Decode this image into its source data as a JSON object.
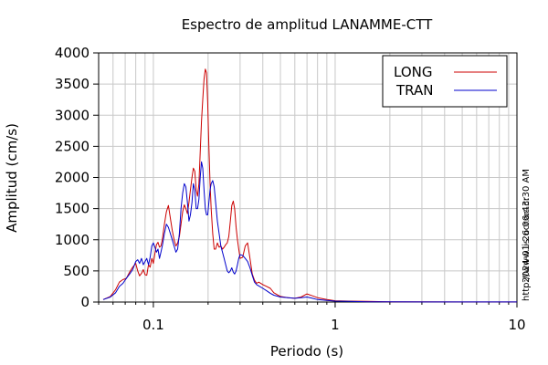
{
  "chart_data": {
    "type": "line",
    "title": "Espectro de amplitud LANAMME-CTT",
    "xlabel": "Periodo (s)",
    "ylabel": "Amplitud (cm/s)",
    "x_scale": "log",
    "xlim": [
      0.05,
      10
    ],
    "ylim": [
      0,
      4000
    ],
    "x_ticks": [
      0.1,
      1,
      10
    ],
    "x_tick_labels": [
      "0.1",
      "1",
      "10"
    ],
    "y_ticks": [
      0,
      500,
      1000,
      1500,
      2000,
      2500,
      3000,
      3500,
      4000
    ],
    "y_tick_labels": [
      "0",
      "500",
      "1000",
      "1500",
      "2000",
      "2500",
      "3000",
      "3500",
      "4000"
    ],
    "grid": true,
    "legend_position": "top-right",
    "side_annotation_top": "2024-01-26 06:43:30 AM",
    "side_annotation_bottom": "http://www.lis.ucr.ac.cr",
    "series": [
      {
        "name": "LONG",
        "color": "#cc0000",
        "x": [
          0.053,
          0.058,
          0.062,
          0.065,
          0.068,
          0.071,
          0.074,
          0.077,
          0.08,
          0.082,
          0.084,
          0.086,
          0.088,
          0.09,
          0.092,
          0.094,
          0.096,
          0.098,
          0.1,
          0.102,
          0.104,
          0.106,
          0.108,
          0.11,
          0.112,
          0.115,
          0.118,
          0.121,
          0.124,
          0.127,
          0.13,
          0.133,
          0.136,
          0.139,
          0.142,
          0.145,
          0.148,
          0.151,
          0.154,
          0.157,
          0.16,
          0.163,
          0.166,
          0.169,
          0.172,
          0.175,
          0.178,
          0.181,
          0.184,
          0.187,
          0.19,
          0.193,
          0.196,
          0.199,
          0.202,
          0.205,
          0.208,
          0.212,
          0.216,
          0.22,
          0.225,
          0.23,
          0.235,
          0.24,
          0.245,
          0.25,
          0.255,
          0.26,
          0.265,
          0.27,
          0.275,
          0.28,
          0.285,
          0.29,
          0.295,
          0.3,
          0.31,
          0.32,
          0.33,
          0.34,
          0.35,
          0.36,
          0.37,
          0.38,
          0.4,
          0.42,
          0.44,
          0.46,
          0.5,
          0.55,
          0.6,
          0.65,
          0.7,
          0.75,
          0.8,
          0.9,
          1.0,
          1.2,
          1.5,
          2.0,
          3.0,
          5.0,
          10.0
        ],
        "y": [
          40,
          90,
          200,
          320,
          360,
          380,
          480,
          560,
          620,
          500,
          420,
          460,
          520,
          440,
          430,
          600,
          560,
          700,
          620,
          780,
          920,
          960,
          880,
          900,
          1000,
          1250,
          1450,
          1550,
          1350,
          1150,
          1000,
          900,
          950,
          1050,
          1250,
          1450,
          1560,
          1500,
          1420,
          1600,
          1800,
          2000,
          2150,
          2100,
          1800,
          1700,
          1900,
          2400,
          2900,
          3250,
          3580,
          3740,
          3680,
          3200,
          2500,
          1900,
          1500,
          1100,
          850,
          850,
          950,
          880,
          900,
          850,
          880,
          920,
          950,
          1050,
          1300,
          1550,
          1620,
          1500,
          1200,
          1000,
          850,
          700,
          720,
          900,
          950,
          700,
          450,
          350,
          300,
          320,
          280,
          250,
          220,
          150,
          90,
          70,
          60,
          80,
          130,
          100,
          70,
          40,
          20,
          15,
          10,
          5,
          3,
          2,
          1
        ]
      },
      {
        "name": "TRAN",
        "color": "#0000cc",
        "x": [
          0.053,
          0.058,
          0.062,
          0.065,
          0.068,
          0.071,
          0.074,
          0.077,
          0.08,
          0.082,
          0.084,
          0.086,
          0.088,
          0.09,
          0.092,
          0.094,
          0.096,
          0.098,
          0.1,
          0.102,
          0.104,
          0.106,
          0.108,
          0.11,
          0.112,
          0.115,
          0.118,
          0.121,
          0.124,
          0.127,
          0.13,
          0.133,
          0.136,
          0.139,
          0.142,
          0.145,
          0.148,
          0.151,
          0.154,
          0.157,
          0.16,
          0.163,
          0.166,
          0.169,
          0.172,
          0.175,
          0.178,
          0.181,
          0.184,
          0.187,
          0.19,
          0.193,
          0.196,
          0.199,
          0.202,
          0.205,
          0.208,
          0.212,
          0.216,
          0.22,
          0.225,
          0.23,
          0.235,
          0.24,
          0.245,
          0.25,
          0.255,
          0.26,
          0.265,
          0.27,
          0.275,
          0.28,
          0.285,
          0.29,
          0.295,
          0.3,
          0.31,
          0.32,
          0.33,
          0.34,
          0.35,
          0.36,
          0.37,
          0.38,
          0.4,
          0.42,
          0.44,
          0.46,
          0.5,
          0.55,
          0.6,
          0.65,
          0.7,
          0.75,
          0.8,
          0.9,
          1.0,
          1.2,
          1.5,
          2.0,
          3.0,
          5.0,
          10.0
        ],
        "y": [
          40,
          80,
          150,
          250,
          300,
          380,
          450,
          520,
          650,
          680,
          620,
          700,
          600,
          650,
          700,
          600,
          720,
          900,
          950,
          880,
          800,
          850,
          700,
          800,
          900,
          1100,
          1250,
          1200,
          1100,
          1000,
          900,
          800,
          850,
          1100,
          1500,
          1750,
          1900,
          1850,
          1600,
          1300,
          1400,
          1600,
          1900,
          1800,
          1500,
          1500,
          1650,
          2000,
          2250,
          2150,
          1800,
          1500,
          1400,
          1400,
          1600,
          1800,
          1900,
          1950,
          1850,
          1600,
          1300,
          1100,
          900,
          800,
          700,
          600,
          500,
          470,
          500,
          550,
          480,
          450,
          500,
          600,
          700,
          760,
          750,
          700,
          650,
          550,
          430,
          320,
          280,
          260,
          220,
          180,
          140,
          110,
          80,
          70,
          60,
          70,
          80,
          60,
          40,
          25,
          15,
          10,
          5,
          3,
          2,
          1,
          1
        ]
      }
    ]
  }
}
